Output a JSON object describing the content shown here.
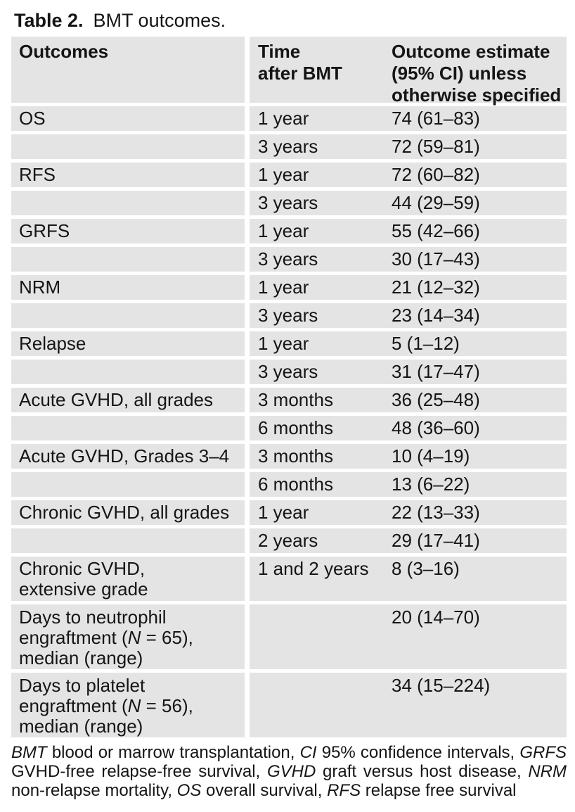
{
  "title": {
    "label": "Table 2.",
    "caption": "BMT outcomes."
  },
  "table": {
    "columns": [
      "Outcomes",
      "Time\nafter BMT",
      "Outcome estimate\n(95% CI) unless\notherwise specified"
    ],
    "rows": [
      {
        "lines": 1,
        "outcome": [
          {
            "t": "OS"
          }
        ],
        "time": [
          {
            "t": "1 year"
          }
        ],
        "estimate": [
          {
            "t": "74 (61–83)"
          }
        ]
      },
      {
        "lines": 1,
        "outcome": [],
        "time": [
          {
            "t": "3 years"
          }
        ],
        "estimate": [
          {
            "t": "72 (59–81)"
          }
        ]
      },
      {
        "lines": 1,
        "outcome": [
          {
            "t": "RFS"
          }
        ],
        "time": [
          {
            "t": "1 year"
          }
        ],
        "estimate": [
          {
            "t": "72 (60–82)"
          }
        ]
      },
      {
        "lines": 1,
        "outcome": [],
        "time": [
          {
            "t": "3 years"
          }
        ],
        "estimate": [
          {
            "t": "44 (29–59)"
          }
        ]
      },
      {
        "lines": 1,
        "outcome": [
          {
            "t": "GRFS"
          }
        ],
        "time": [
          {
            "t": "1 year"
          }
        ],
        "estimate": [
          {
            "t": "55 (42–66)"
          }
        ]
      },
      {
        "lines": 1,
        "outcome": [],
        "time": [
          {
            "t": "3 years"
          }
        ],
        "estimate": [
          {
            "t": "30 (17–43)"
          }
        ]
      },
      {
        "lines": 1,
        "outcome": [
          {
            "t": "NRM"
          }
        ],
        "time": [
          {
            "t": "1 year"
          }
        ],
        "estimate": [
          {
            "t": "21 (12–32)"
          }
        ]
      },
      {
        "lines": 1,
        "outcome": [],
        "time": [
          {
            "t": "3 years"
          }
        ],
        "estimate": [
          {
            "t": "23 (14–34)"
          }
        ]
      },
      {
        "lines": 1,
        "outcome": [
          {
            "t": "Relapse"
          }
        ],
        "time": [
          {
            "t": "1 year"
          }
        ],
        "estimate": [
          {
            "t": "5 (1–12)"
          }
        ]
      },
      {
        "lines": 1,
        "outcome": [],
        "time": [
          {
            "t": "3 years"
          }
        ],
        "estimate": [
          {
            "t": "31 (17–47)"
          }
        ]
      },
      {
        "lines": 1,
        "outcome": [
          {
            "t": "Acute GVHD, all grades"
          }
        ],
        "time": [
          {
            "t": "3 months"
          }
        ],
        "estimate": [
          {
            "t": "36 (25–48)"
          }
        ]
      },
      {
        "lines": 1,
        "outcome": [],
        "time": [
          {
            "t": "6 months"
          }
        ],
        "estimate": [
          {
            "t": "48 (36–60)"
          }
        ]
      },
      {
        "lines": 1,
        "outcome": [
          {
            "t": "Acute GVHD, Grades 3–4"
          }
        ],
        "time": [
          {
            "t": "3 months"
          }
        ],
        "estimate": [
          {
            "t": "10 (4–19)"
          }
        ]
      },
      {
        "lines": 1,
        "outcome": [],
        "time": [
          {
            "t": "6 months"
          }
        ],
        "estimate": [
          {
            "t": "13 (6–22)"
          }
        ]
      },
      {
        "lines": 1,
        "outcome": [
          {
            "t": "Chronic GVHD, all grades"
          }
        ],
        "time": [
          {
            "t": "1 year"
          }
        ],
        "estimate": [
          {
            "t": "22 (13–33)"
          }
        ]
      },
      {
        "lines": 1,
        "outcome": [],
        "time": [
          {
            "t": "2 years"
          }
        ],
        "estimate": [
          {
            "t": "29 (17–41)"
          }
        ]
      },
      {
        "lines": 2,
        "outcome": [
          {
            "t": "Chronic GVHD,\nextensive grade"
          }
        ],
        "time": [
          {
            "t": "1 and 2 years"
          }
        ],
        "estimate": [
          {
            "t": "8 (3–16)"
          }
        ]
      },
      {
        "lines": 3,
        "outcome": [
          {
            "t": "Days to neutrophil\nengraftment ("
          },
          {
            "t": "N",
            "i": true
          },
          {
            "t": " = 65),\nmedian (range)"
          }
        ],
        "time": [],
        "estimate": [
          {
            "t": "20 (14–70)"
          }
        ]
      },
      {
        "lines": 3,
        "outcome": [
          {
            "t": "Days to platelet\nengraftment ("
          },
          {
            "t": "N",
            "i": true
          },
          {
            "t": " = 56),\nmedian (range)"
          }
        ],
        "time": [],
        "estimate": [
          {
            "t": "34 (15–224)"
          }
        ]
      }
    ]
  },
  "footnote": {
    "segments": [
      {
        "t": "BMT",
        "i": true
      },
      {
        "t": " blood or marrow transplantation, "
      },
      {
        "t": "CI",
        "i": true
      },
      {
        "t": " 95% confidence intervals, "
      },
      {
        "t": "GRFS",
        "i": true
      },
      {
        "t": " GVHD-free relapse-free survival, "
      },
      {
        "t": "GVHD",
        "i": true
      },
      {
        "t": " graft versus host disease, "
      },
      {
        "t": "NRM",
        "i": true
      },
      {
        "t": " non-relapse mortality, "
      },
      {
        "t": "OS",
        "i": true
      },
      {
        "t": " overall survival, "
      },
      {
        "t": "RFS",
        "i": true
      },
      {
        "t": " relapse free survival"
      }
    ]
  },
  "colors": {
    "row_bg": "#e4e4e4",
    "separator": "#ffffff",
    "text": "#151515"
  }
}
